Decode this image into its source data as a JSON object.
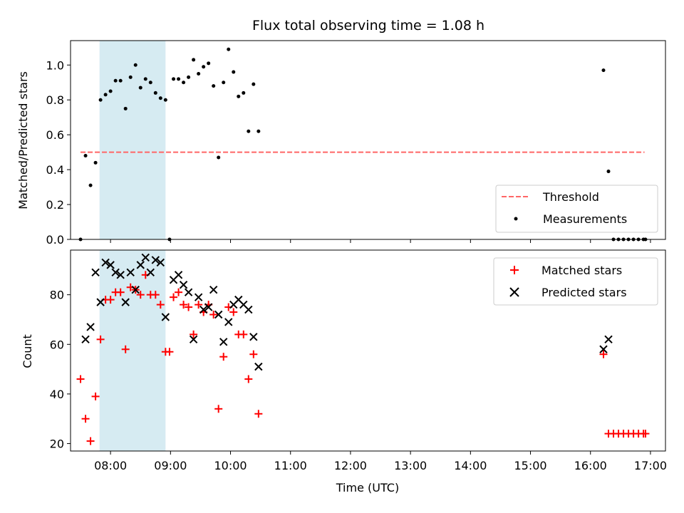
{
  "colors": {
    "threshold": "#ff6666",
    "measurements": "#000000",
    "matched": "#ff0000",
    "predicted": "#000000",
    "shade": "#add8e6"
  },
  "chart_data": [
    {
      "type": "scatter",
      "title": "Flux total observing time = 1.08 h",
      "xlabel": "",
      "ylabel": "Matched/Predicted stars",
      "x_unit": "hours UTC",
      "xlim": [
        "07:20",
        "17:15"
      ],
      "ylim": [
        0,
        1.14
      ],
      "yticks": [
        "0.0",
        "0.2",
        "0.4",
        "0.6",
        "0.8",
        "1.0"
      ],
      "shaded_interval": [
        "07:49",
        "08:55"
      ],
      "legend": {
        "position": "lower-right",
        "entries": [
          "Threshold",
          "Measurements"
        ]
      },
      "threshold": {
        "name": "Threshold",
        "y": 0.5,
        "x_range": [
          "07:30",
          "16:54"
        ],
        "style": "dashed"
      },
      "series": [
        {
          "name": "Measurements",
          "points": [
            [
              "07:30",
              0.0
            ],
            [
              "07:35",
              0.48
            ],
            [
              "07:40",
              0.31
            ],
            [
              "07:45",
              0.44
            ],
            [
              "07:50",
              0.8
            ],
            [
              "07:55",
              0.83
            ],
            [
              "08:00",
              0.85
            ],
            [
              "08:05",
              0.91
            ],
            [
              "08:10",
              0.91
            ],
            [
              "08:15",
              0.75
            ],
            [
              "08:20",
              0.93
            ],
            [
              "08:25",
              1.0
            ],
            [
              "08:30",
              0.87
            ],
            [
              "08:35",
              0.92
            ],
            [
              "08:40",
              0.9
            ],
            [
              "08:45",
              0.84
            ],
            [
              "08:50",
              0.81
            ],
            [
              "08:55",
              0.8
            ],
            [
              "08:59",
              0.0
            ],
            [
              "09:03",
              0.92
            ],
            [
              "09:08",
              0.92
            ],
            [
              "09:13",
              0.9
            ],
            [
              "09:18",
              0.93
            ],
            [
              "09:23",
              1.03
            ],
            [
              "09:28",
              0.95
            ],
            [
              "09:33",
              0.99
            ],
            [
              "09:38",
              1.01
            ],
            [
              "09:43",
              0.88
            ],
            [
              "09:48",
              0.47
            ],
            [
              "09:53",
              0.9
            ],
            [
              "09:58",
              1.09
            ],
            [
              "10:03",
              0.96
            ],
            [
              "10:08",
              0.82
            ],
            [
              "10:13",
              0.84
            ],
            [
              "10:18",
              0.62
            ],
            [
              "10:23",
              0.89
            ],
            [
              "10:28",
              0.62
            ],
            [
              "16:13",
              0.97
            ],
            [
              "16:18",
              0.39
            ],
            [
              "16:23",
              0.0
            ],
            [
              "16:28",
              0.0
            ],
            [
              "16:33",
              0.0
            ],
            [
              "16:38",
              0.0
            ],
            [
              "16:43",
              0.0
            ],
            [
              "16:48",
              0.0
            ],
            [
              "16:53",
              0.0
            ],
            [
              "16:55",
              0.0
            ]
          ]
        }
      ]
    },
    {
      "type": "scatter",
      "title": "",
      "xlabel": "Time (UTC)",
      "ylabel": "Count",
      "x_unit": "hours UTC",
      "xlim": [
        "07:20",
        "17:15"
      ],
      "ylim": [
        17,
        98
      ],
      "xticks": [
        "08:00",
        "09:00",
        "10:00",
        "11:00",
        "12:00",
        "13:00",
        "14:00",
        "15:00",
        "16:00",
        "17:00"
      ],
      "yticks": [
        "20",
        "40",
        "60",
        "80"
      ],
      "shaded_interval": [
        "07:49",
        "08:55"
      ],
      "legend": {
        "position": "top-right",
        "entries": [
          "Matched stars",
          "Predicted stars"
        ]
      },
      "series": [
        {
          "name": "Matched stars",
          "marker": "plus",
          "points": [
            [
              "07:30",
              46
            ],
            [
              "07:35",
              30
            ],
            [
              "07:40",
              21
            ],
            [
              "07:45",
              39
            ],
            [
              "07:50",
              62
            ],
            [
              "07:55",
              78
            ],
            [
              "08:00",
              78
            ],
            [
              "08:05",
              81
            ],
            [
              "08:10",
              81
            ],
            [
              "08:15",
              58
            ],
            [
              "08:20",
              83
            ],
            [
              "08:25",
              82
            ],
            [
              "08:30",
              80
            ],
            [
              "08:35",
              88
            ],
            [
              "08:40",
              80
            ],
            [
              "08:45",
              80
            ],
            [
              "08:50",
              76
            ],
            [
              "08:55",
              57
            ],
            [
              "08:59",
              57
            ],
            [
              "09:03",
              79
            ],
            [
              "09:08",
              81
            ],
            [
              "09:13",
              76
            ],
            [
              "09:18",
              75
            ],
            [
              "09:23",
              64
            ],
            [
              "09:28",
              76
            ],
            [
              "09:33",
              73
            ],
            [
              "09:38",
              76
            ],
            [
              "09:43",
              72
            ],
            [
              "09:48",
              34
            ],
            [
              "09:53",
              55
            ],
            [
              "09:58",
              75
            ],
            [
              "10:03",
              73
            ],
            [
              "10:08",
              64
            ],
            [
              "10:13",
              64
            ],
            [
              "10:18",
              46
            ],
            [
              "10:23",
              56
            ],
            [
              "10:28",
              32
            ],
            [
              "16:13",
              56
            ],
            [
              "16:18",
              24
            ],
            [
              "16:23",
              24
            ],
            [
              "16:28",
              24
            ],
            [
              "16:33",
              24
            ],
            [
              "16:38",
              24
            ],
            [
              "16:43",
              24
            ],
            [
              "16:48",
              24
            ],
            [
              "16:53",
              24
            ],
            [
              "16:55",
              24
            ]
          ]
        },
        {
          "name": "Predicted stars",
          "marker": "x",
          "points": [
            [
              "07:35",
              62
            ],
            [
              "07:40",
              67
            ],
            [
              "07:45",
              89
            ],
            [
              "07:50",
              77
            ],
            [
              "07:55",
              93
            ],
            [
              "08:00",
              92
            ],
            [
              "08:05",
              89
            ],
            [
              "08:10",
              88
            ],
            [
              "08:15",
              77
            ],
            [
              "08:20",
              89
            ],
            [
              "08:25",
              82
            ],
            [
              "08:30",
              92
            ],
            [
              "08:35",
              95
            ],
            [
              "08:40",
              89
            ],
            [
              "08:45",
              94
            ],
            [
              "08:50",
              93
            ],
            [
              "08:55",
              71
            ],
            [
              "09:03",
              86
            ],
            [
              "09:08",
              88
            ],
            [
              "09:13",
              84
            ],
            [
              "09:18",
              81
            ],
            [
              "09:23",
              62
            ],
            [
              "09:28",
              79
            ],
            [
              "09:33",
              74
            ],
            [
              "09:38",
              75
            ],
            [
              "09:43",
              82
            ],
            [
              "09:48",
              72
            ],
            [
              "09:53",
              61
            ],
            [
              "09:58",
              69
            ],
            [
              "10:03",
              76
            ],
            [
              "10:08",
              78
            ],
            [
              "10:13",
              76
            ],
            [
              "10:18",
              74
            ],
            [
              "10:23",
              63
            ],
            [
              "10:28",
              51
            ],
            [
              "16:13",
              58
            ],
            [
              "16:18",
              62
            ]
          ]
        }
      ]
    }
  ]
}
